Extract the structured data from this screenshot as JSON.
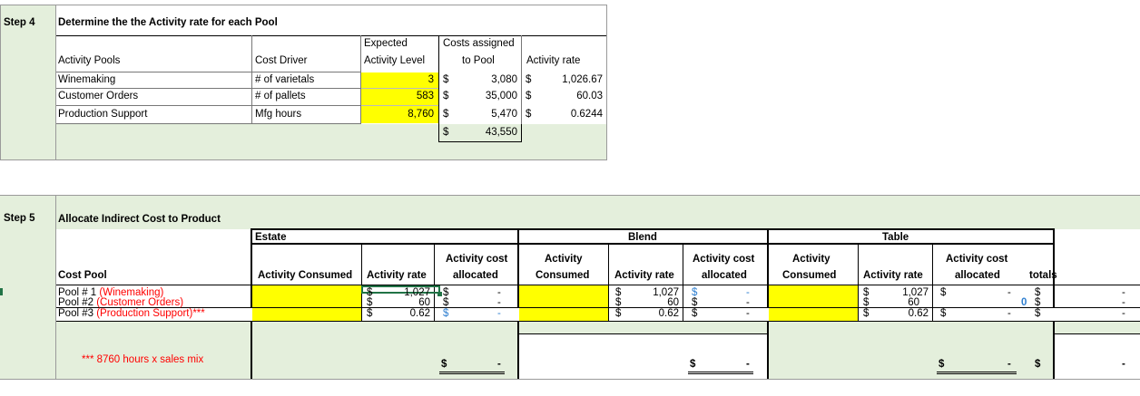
{
  "step4": {
    "step_label": "Step 4",
    "title": "Determine the the Activity rate for each Pool",
    "headers": {
      "activity_pools": "Activity Pools",
      "cost_driver": "Cost Driver",
      "expected_1": "Expected",
      "expected_2": "Activity Level",
      "costs_1": "Costs assigned",
      "costs_2": "to Pool",
      "activity_rate": "Activity rate"
    },
    "rows": [
      {
        "pool": "Winemaking",
        "driver": "# of varietals",
        "level": "3",
        "cost_sym": "$",
        "cost": "3,080",
        "rate_sym": "$",
        "rate": "1,026.67"
      },
      {
        "pool": "Customer Orders",
        "driver": "# of pallets",
        "level": "583",
        "cost_sym": "$",
        "cost": "35,000",
        "rate_sym": "$",
        "rate": "60.03"
      },
      {
        "pool": "Production Support",
        "driver": "Mfg hours",
        "level": "8,760",
        "cost_sym": "$",
        "cost": "5,470",
        "rate_sym": "$",
        "rate": "0.6244"
      }
    ],
    "total_sym": "$",
    "total": "43,550"
  },
  "step5": {
    "step_label": "Step 5",
    "title": "Allocate Indirect Cost to Product",
    "products": [
      "Estate",
      "Blend",
      "Table"
    ],
    "cost_pool_header": "Cost Pool",
    "estate_headers": {
      "consumed": "Activity Consumed",
      "rate": "Activity rate",
      "alloc_1": "Activity cost",
      "alloc_2": "allocated"
    },
    "other_headers": {
      "consumed_1": "Activity",
      "consumed_2": "Consumed",
      "rate": "Activity rate",
      "alloc_1": "Activity cost",
      "alloc_2": "allocated"
    },
    "totals_header": "totals",
    "pools": [
      {
        "name": "Pool # 1",
        "paren": "(Winemaking)"
      },
      {
        "name": "Pool #2",
        "paren": "(Customer Orders)"
      },
      {
        "name": "Pool #3",
        "paren": "(Production Support)***"
      }
    ],
    "estate_rates": [
      "1,027",
      "60",
      "0.62"
    ],
    "blend_rates": [
      "1,027",
      "60",
      "0.62"
    ],
    "table_rates": [
      "1,027",
      "60",
      "0.62"
    ],
    "dollar": "$",
    "dash": "-",
    "zero": "0",
    "footnote": "*** 8760 hours x sales mix"
  }
}
